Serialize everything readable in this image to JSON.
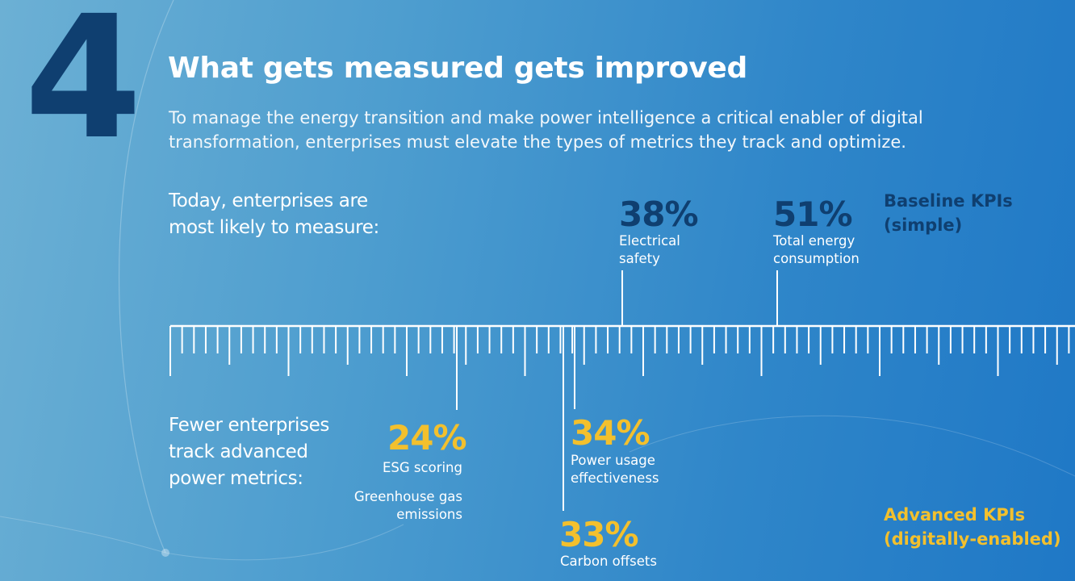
{
  "section_number": "4",
  "title": "What gets measured gets improved",
  "intro": "To manage the energy transition and make power intelligence a critical enabler of digital transformation, enterprises must elevate the types of metrics they track and optimize.",
  "lead_top": "Today, enterprises are most likely to measure:",
  "lead_bottom": "Fewer enterprises track advanced power metrics:",
  "baseline": {
    "label": "Baseline KPIs (simple)",
    "color": "#0f3f70",
    "items": [
      {
        "value": "38%",
        "caption": "Electrical safety"
      },
      {
        "value": "51%",
        "caption": "Total energy consumption"
      }
    ]
  },
  "advanced": {
    "label": "Advanced KPIs (digitally-enabled)",
    "color": "#f3c02d",
    "items": [
      {
        "value": "24%",
        "caption": "ESG scoring",
        "extra": "Greenhouse gas emissions"
      },
      {
        "value": "34%",
        "caption": "Power usage effectiveness"
      },
      {
        "value": "33%",
        "caption": "Carbon offsets"
      }
    ]
  }
}
